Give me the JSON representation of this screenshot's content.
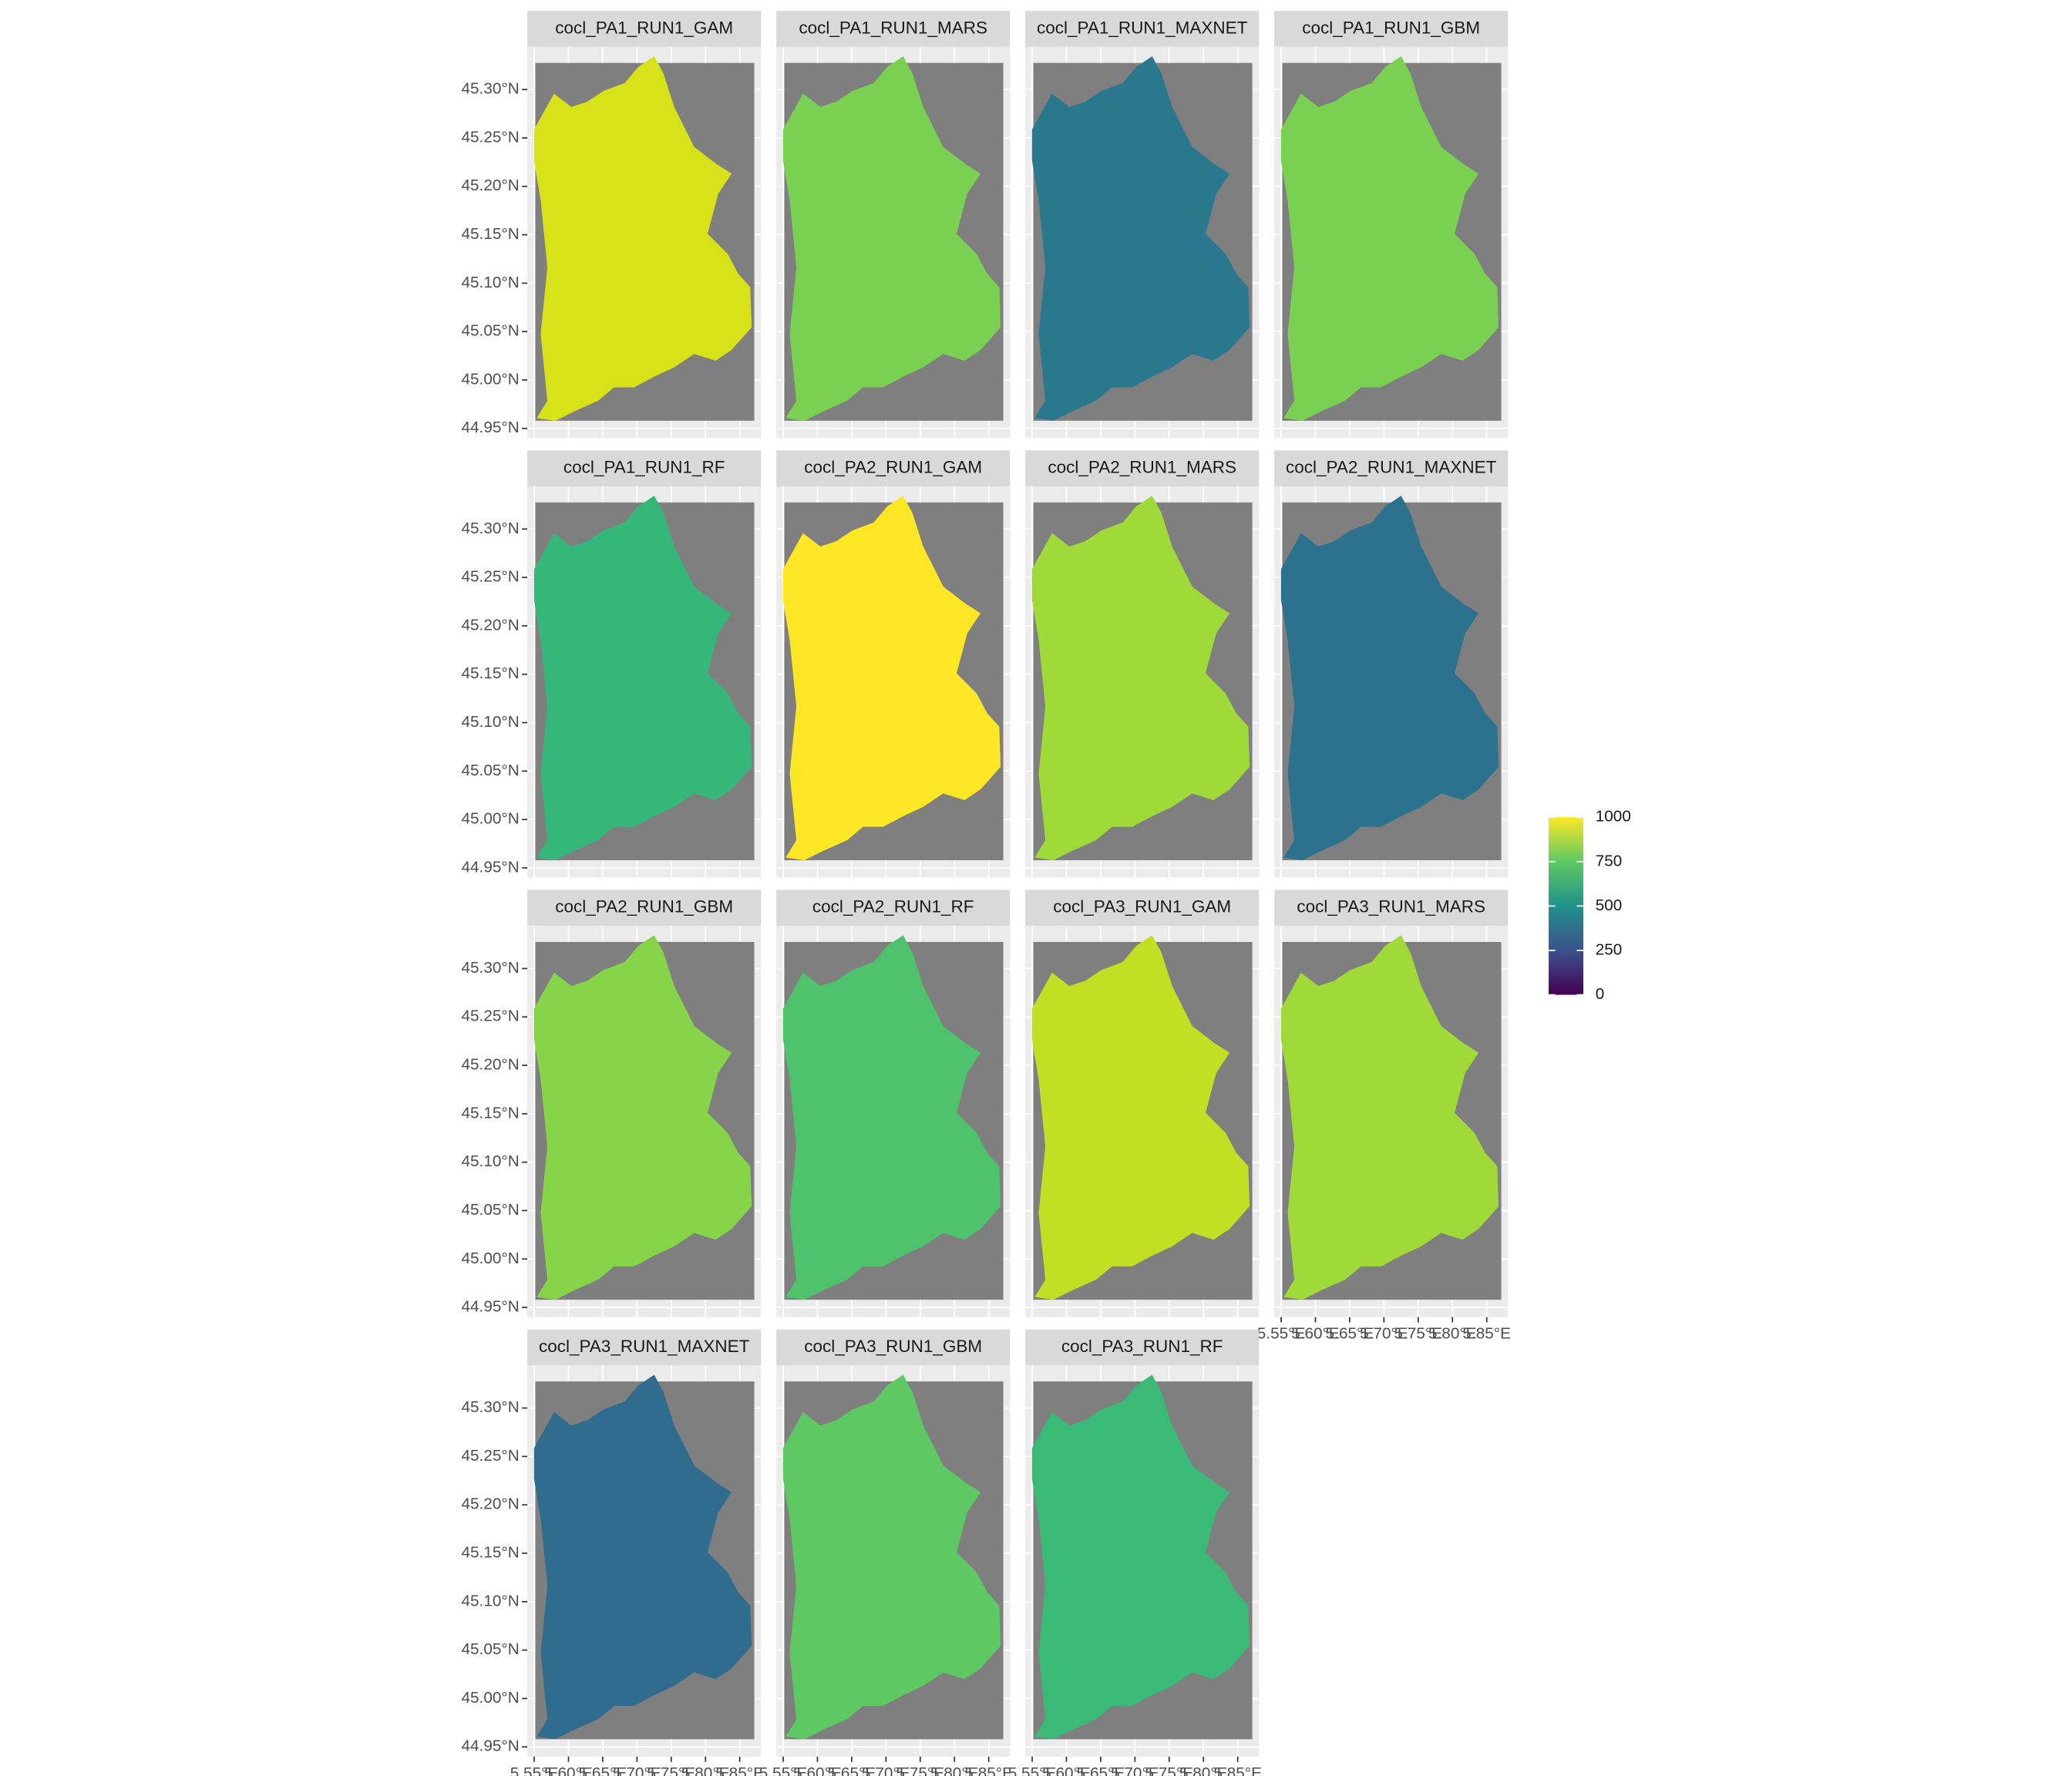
{
  "chart_data": {
    "type": "raster",
    "panels": [
      {
        "title": "cocl_PA1_RUN1_GAM",
        "color": "#d8e219"
      },
      {
        "title": "cocl_PA1_RUN1_MARS",
        "color": "#7ad151"
      },
      {
        "title": "cocl_PA1_RUN1_MAXNET",
        "color": "#2a788e"
      },
      {
        "title": "cocl_PA1_RUN1_GBM",
        "color": "#7ad151"
      },
      {
        "title": "cocl_PA1_RUN1_RF",
        "color": "#35b779"
      },
      {
        "title": "cocl_PA2_RUN1_GAM",
        "color": "#fde725"
      },
      {
        "title": "cocl_PA2_RUN1_MARS",
        "color": "#a0da39"
      },
      {
        "title": "cocl_PA2_RUN1_MAXNET",
        "color": "#2c728e"
      },
      {
        "title": "cocl_PA2_RUN1_GBM",
        "color": "#86d549"
      },
      {
        "title": "cocl_PA2_RUN1_RF",
        "color": "#4ec36b"
      },
      {
        "title": "cocl_PA3_RUN1_GAM",
        "color": "#c2df23"
      },
      {
        "title": "cocl_PA3_RUN1_MARS",
        "color": "#a0da39"
      },
      {
        "title": "cocl_PA3_RUN1_MAXNET",
        "color": "#2f6c8e"
      },
      {
        "title": "cocl_PA3_RUN1_GBM",
        "color": "#5ec962"
      },
      {
        "title": "cocl_PA3_RUN1_RF",
        "color": "#3aba76"
      }
    ],
    "columns": 4,
    "xlim": [
      5.54,
      5.881
    ],
    "xticks": [
      {
        "value": 5.55,
        "label": "5.55°E"
      },
      {
        "value": 5.6,
        "label": "5.60°E"
      },
      {
        "value": 5.65,
        "label": "5.65°E"
      },
      {
        "value": 5.7,
        "label": "5.70°E"
      },
      {
        "value": 5.75,
        "label": "5.75°E"
      },
      {
        "value": 5.8,
        "label": "5.80°E"
      },
      {
        "value": 5.85,
        "label": "5.85°E"
      }
    ],
    "ylim": [
      44.94,
      45.344
    ],
    "yticks": [
      {
        "value": 44.95,
        "label": "44.95°N"
      },
      {
        "value": 45.0,
        "label": "45.00°N"
      },
      {
        "value": 45.05,
        "label": "45.05°N"
      },
      {
        "value": 45.1,
        "label": "45.10°N"
      },
      {
        "value": 45.15,
        "label": "45.15°N"
      },
      {
        "value": 45.2,
        "label": "45.20°N"
      },
      {
        "value": 45.25,
        "label": "45.25°N"
      },
      {
        "value": 45.3,
        "label": "45.30°N"
      }
    ],
    "grid": true,
    "legend": {
      "lim": [
        0,
        1000
      ],
      "ticks": [
        0,
        250,
        500,
        750,
        1000
      ],
      "colors": [
        "#440154",
        "#3b528b",
        "#21918c",
        "#5ec962",
        "#fde725"
      ]
    }
  }
}
